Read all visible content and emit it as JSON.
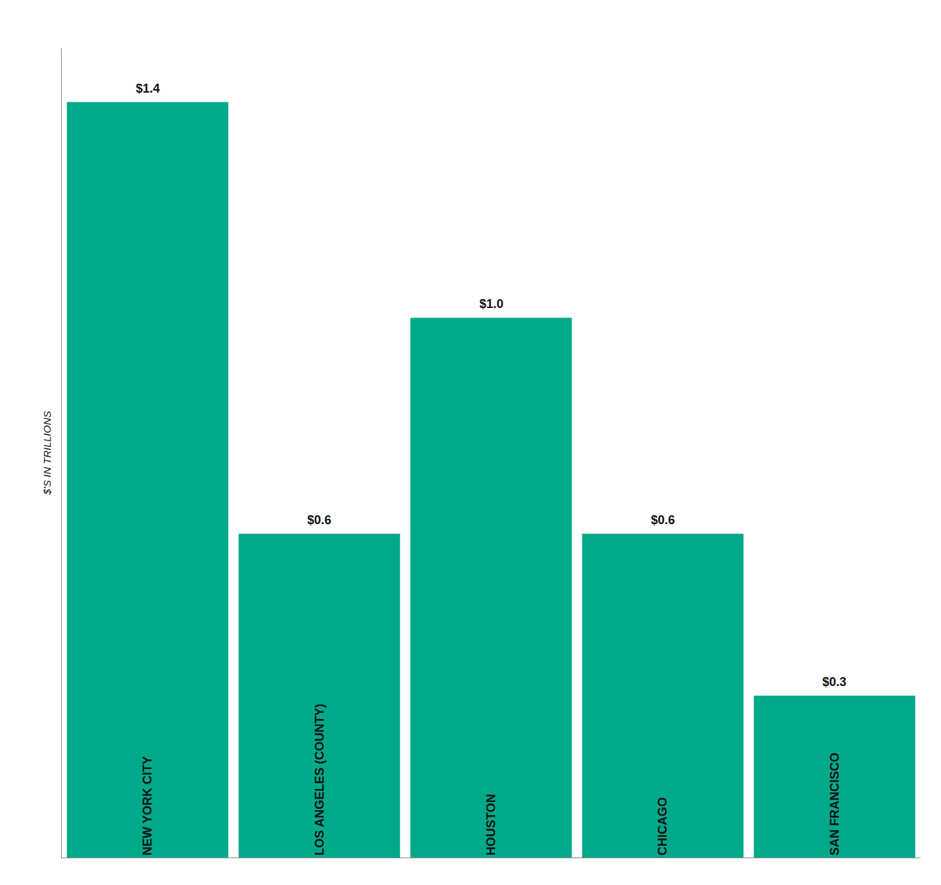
{
  "chart_data": {
    "type": "bar",
    "y_label": "$'S IN TRILLIONS",
    "categories": [
      "NEW YORK CITY",
      "LOS ANGELES (COUNTY)",
      "HOUSTON",
      "CHICAGO",
      "SAN FRANCISCO"
    ],
    "values": [
      1.4,
      0.6,
      1.0,
      0.6,
      0.3
    ],
    "value_labels": [
      "$1.4",
      "$0.6",
      "$1.0",
      "$0.6",
      "$0.3"
    ],
    "data_labels": true,
    "color": "#00a98a",
    "ylim": [
      0,
      1.5
    ],
    "grid": false,
    "tick_labels": false
  }
}
